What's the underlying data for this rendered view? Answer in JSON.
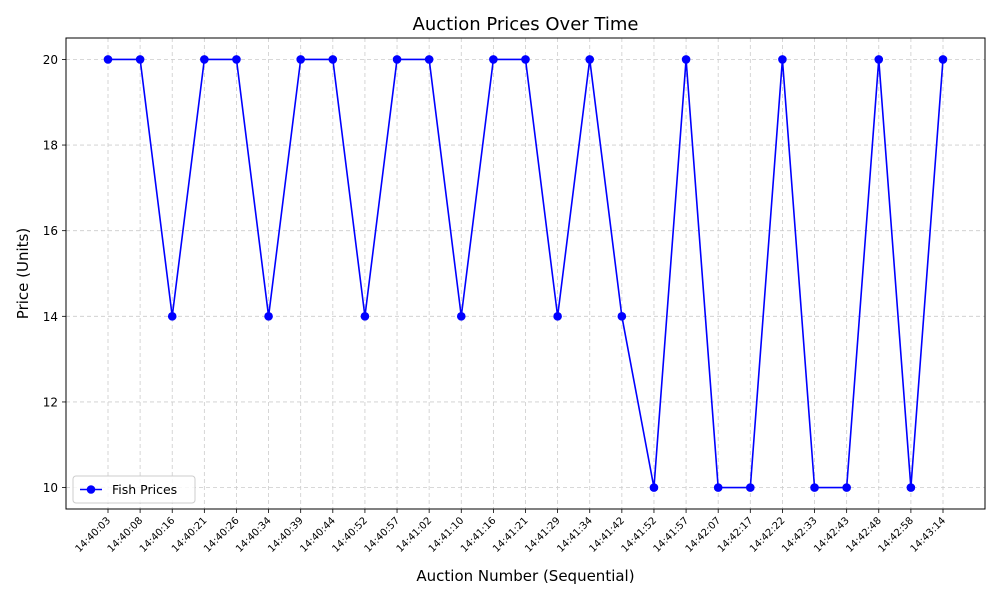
{
  "chart_data": {
    "type": "line",
    "title": "Auction Prices Over Time",
    "xlabel": "Auction Number (Sequential)",
    "ylabel": "Price (Units)",
    "categories": [
      "14:40:03",
      "14:40:08",
      "14:40:16",
      "14:40:21",
      "14:40:26",
      "14:40:34",
      "14:40:39",
      "14:40:44",
      "14:40:52",
      "14:40:57",
      "14:41:02",
      "14:41:10",
      "14:41:16",
      "14:41:21",
      "14:41:29",
      "14:41:34",
      "14:41:42",
      "14:41:52",
      "14:41:57",
      "14:42:07",
      "14:42:17",
      "14:42:22",
      "14:42:33",
      "14:42:43",
      "14:42:48",
      "14:42:58",
      "14:43:14"
    ],
    "series": [
      {
        "name": "Fish Prices",
        "color": "#0000ff",
        "marker": "circle",
        "values": [
          20,
          20,
          14,
          20,
          20,
          14,
          20,
          20,
          14,
          20,
          20,
          14,
          20,
          20,
          14,
          20,
          14,
          10,
          20,
          10,
          10,
          20,
          10,
          10,
          20,
          10,
          20
        ]
      }
    ],
    "ylim": [
      9.5,
      20.5
    ],
    "yticks": [
      10,
      12,
      14,
      16,
      18,
      20
    ],
    "grid": true,
    "legend_position": "lower-left"
  }
}
